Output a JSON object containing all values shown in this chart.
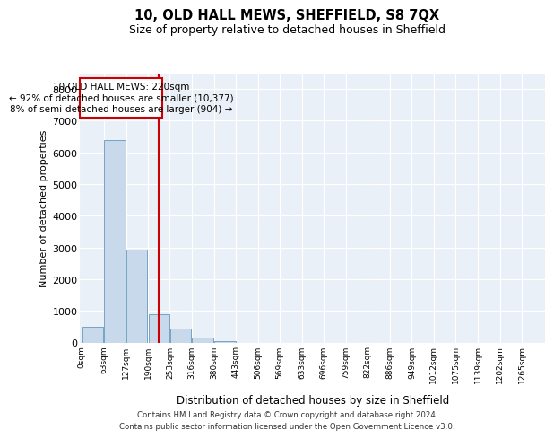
{
  "title1": "10, OLD HALL MEWS, SHEFFIELD, S8 7QX",
  "title2": "Size of property relative to detached houses in Sheffield",
  "xlabel": "Distribution of detached houses by size in Sheffield",
  "ylabel": "Number of detached properties",
  "footnote1": "Contains HM Land Registry data © Crown copyright and database right 2024.",
  "footnote2": "Contains public sector information licensed under the Open Government Licence v3.0.",
  "annotation_line1": "10 OLD HALL MEWS: 220sqm",
  "annotation_line2": "← 92% of detached houses are smaller (10,377)",
  "annotation_line3": "8% of semi-detached houses are larger (904) →",
  "bar_color": "#c9d9ec",
  "bar_edge_color": "#6699bb",
  "vline_x": 220,
  "vline_color": "#cc0000",
  "annotation_box_color": "#cc0000",
  "categories": [
    "0sqm",
    "63sqm",
    "127sqm",
    "190sqm",
    "253sqm",
    "316sqm",
    "380sqm",
    "443sqm",
    "506sqm",
    "569sqm",
    "633sqm",
    "696sqm",
    "759sqm",
    "822sqm",
    "886sqm",
    "949sqm",
    "1012sqm",
    "1075sqm",
    "1139sqm",
    "1202sqm",
    "1265sqm"
  ],
  "bin_edges": [
    0,
    63,
    127,
    190,
    253,
    316,
    380,
    443,
    506,
    569,
    633,
    696,
    759,
    822,
    886,
    949,
    1012,
    1075,
    1139,
    1202,
    1265
  ],
  "bar_heights": [
    490,
    6380,
    2920,
    900,
    430,
    150,
    50,
    0,
    0,
    0,
    0,
    0,
    0,
    0,
    0,
    0,
    0,
    0,
    0,
    0
  ],
  "ylim": [
    0,
    8500
  ],
  "yticks": [
    0,
    1000,
    2000,
    3000,
    4000,
    5000,
    6000,
    7000,
    8000
  ],
  "background_color": "#eaf0f8",
  "plot_background": "#eaf0f8"
}
